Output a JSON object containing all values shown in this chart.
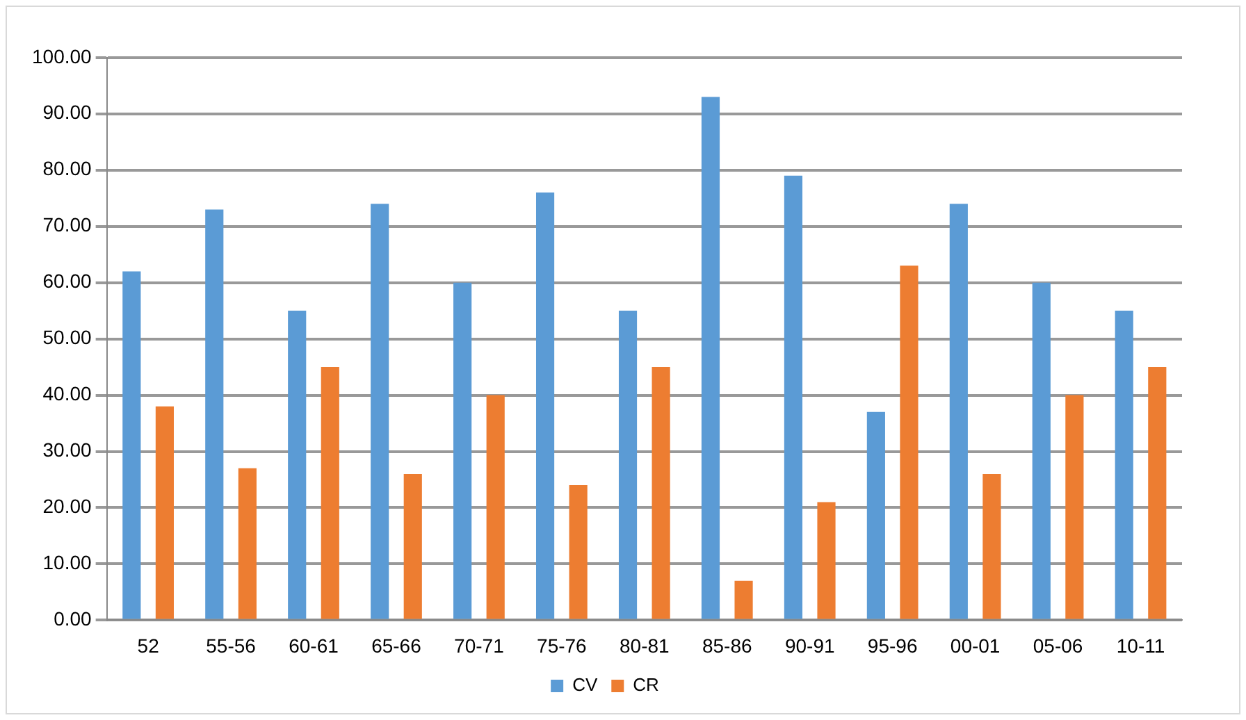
{
  "chart_data": {
    "type": "bar",
    "categories": [
      "52",
      "55-56",
      "60-61",
      "65-66",
      "70-71",
      "75-76",
      "80-81",
      "85-86",
      "90-91",
      "95-96",
      "00-01",
      "05-06",
      "10-11"
    ],
    "series": [
      {
        "name": "CV",
        "color": "#5b9bd5",
        "values": [
          62,
          73,
          55,
          74,
          60,
          76,
          55,
          93,
          79,
          37,
          74,
          60,
          55
        ]
      },
      {
        "name": "CR",
        "color": "#ed7d31",
        "values": [
          38,
          27,
          45,
          26,
          40,
          24,
          45,
          7,
          21,
          63,
          26,
          40,
          45
        ]
      }
    ],
    "ylim": [
      0,
      100
    ],
    "yticks": [
      {
        "value": 0,
        "label": "0.00"
      },
      {
        "value": 10,
        "label": "10.00"
      },
      {
        "value": 20,
        "label": "20.00"
      },
      {
        "value": 30,
        "label": "30.00"
      },
      {
        "value": 40,
        "label": "40.00"
      },
      {
        "value": 50,
        "label": "50.00"
      },
      {
        "value": 60,
        "label": "60.00"
      },
      {
        "value": 70,
        "label": "70.00"
      },
      {
        "value": 80,
        "label": "80.00"
      },
      {
        "value": 90,
        "label": "90.00"
      },
      {
        "value": 100,
        "label": "100.00"
      }
    ],
    "grid": "y",
    "legend": "bottom"
  }
}
